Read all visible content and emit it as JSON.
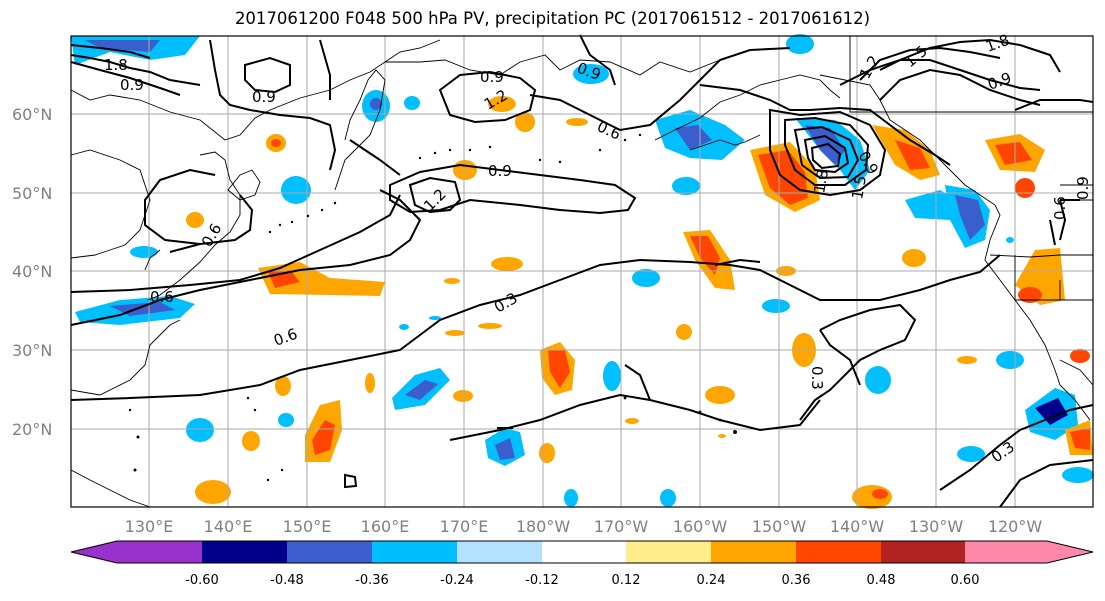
{
  "title": "2017061200 F048 500 hPa PV, precipitation PC (2017061512 - 2017061612)",
  "map": {
    "lat_ticks": [
      "60°N",
      "50°N",
      "40°N",
      "30°N",
      "20°N"
    ],
    "lon_ticks": [
      "130°E",
      "140°E",
      "150°E",
      "160°E",
      "170°E",
      "180°W",
      "170°W",
      "160°W",
      "150°W",
      "140°W",
      "130°W",
      "120°W"
    ],
    "contour_labels": [
      "0.9",
      "0.9",
      "1.2",
      "0.9",
      "0.6",
      "0.9",
      "1.2",
      "0.6",
      "0.6",
      "0.3",
      "0.6",
      "0.3",
      "0.3",
      "1.8",
      "1.5",
      "0.9",
      "1.2",
      "1.5",
      "1.8",
      "0.9",
      "1.8",
      "0.9",
      "0.6",
      "0.9"
    ]
  },
  "colorbar": {
    "labels": [
      "-0.60",
      "-0.48",
      "-0.36",
      "-0.24",
      "-0.12",
      "0.12",
      "0.24",
      "0.36",
      "0.48",
      "0.60"
    ],
    "colors": [
      "#9932cc",
      "#00008b",
      "#3a5fcd",
      "#00bfff",
      "#b2e2ff",
      "#ffffff",
      "#ffec8b",
      "#ffa500",
      "#ff4500",
      "#b22222",
      "#ff88aa"
    ]
  }
}
